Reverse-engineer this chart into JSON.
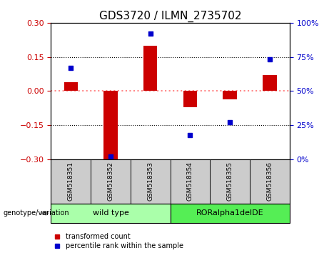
{
  "title": "GDS3720 / ILMN_2735702",
  "samples": [
    "GSM518351",
    "GSM518352",
    "GSM518353",
    "GSM518354",
    "GSM518355",
    "GSM518356"
  ],
  "red_values": [
    0.04,
    -0.3,
    0.2,
    -0.07,
    -0.035,
    0.07
  ],
  "blue_values_pct": [
    67,
    2,
    92,
    18,
    27,
    73
  ],
  "ylim_left": [
    -0.3,
    0.3
  ],
  "ylim_right": [
    0,
    100
  ],
  "yticks_left": [
    -0.3,
    -0.15,
    0,
    0.15,
    0.3
  ],
  "yticks_right": [
    0,
    25,
    50,
    75,
    100
  ],
  "red_color": "#CC0000",
  "blue_color": "#0000CC",
  "red_hline_color": "#FF8888",
  "bar_width": 0.35,
  "groups": [
    {
      "label": "wild type",
      "indices": [
        0,
        1,
        2
      ],
      "color": "#AAFFAA"
    },
    {
      "label": "RORalpha1delDE",
      "indices": [
        3,
        4,
        5
      ],
      "color": "#55EE55"
    }
  ],
  "legend_red": "transformed count",
  "legend_blue": "percentile rank within the sample",
  "genotype_label": "genotype/variation",
  "bg_color": "#FFFFFF",
  "plot_bg": "#FFFFFF",
  "tick_area_color": "#CCCCCC",
  "title_fontsize": 11
}
